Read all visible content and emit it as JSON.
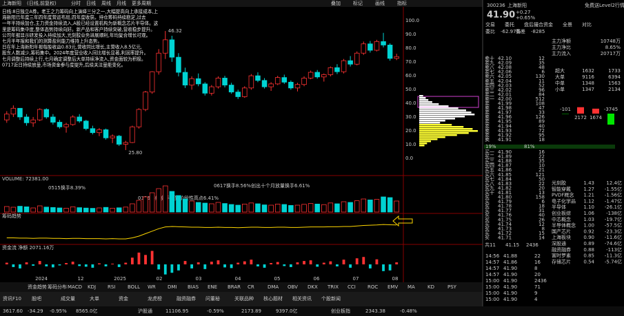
{
  "header": {
    "tabs": [
      "上海新阳",
      "(日线,前复权)",
      "分时",
      "日线",
      "周线",
      "月线",
      "更多周期"
    ],
    "tools": [
      "叠加",
      "标记",
      "画线",
      "指标"
    ]
  },
  "overlay_text": [
    "日线:8日独立A券。老王之力筹码向上演绎三分之一,大幅提高向上承接成本,上",
    "海新阳已年度三年四年度营运布局,四年度收获。持仓筹码持续稳定,过去",
    "一年半持续加仓,主力资金持续流入,A股已经设置机构为新概念芯片半导体。这",
    "里是筹码集中度,整体态势持续向好。新产品和客户持续突破,营收稳步提升。",
    "公司年报显示研发投入持续加大,光刻胶业务进展顺利,年均复合增长可观。",
    "七月半年报和我们的测算盈利能力维持上升态势。",
    "日在年上海新阳年报每股收益0.83元,营收同比增长,主营收入8.5亿元,",
    "股东人数减少,筹码集中。2024年度营业收入同比增长显著,利润率提升。",
    "七月调整后持续上行,七月确定调整后大单持续净流入,资金面较为积极。",
    "0717近日持续放量,市场资金参与度提升,后续关注量能变化。"
  ],
  "chart_data": {
    "type": "candlestick",
    "candles": [
      [
        31,
        32.5,
        30.5,
        32
      ],
      [
        32,
        33.5,
        31.5,
        33
      ],
      [
        33,
        33,
        31,
        31.5
      ],
      [
        31.5,
        32,
        30,
        30.5
      ],
      [
        30.5,
        31.5,
        29.8,
        31
      ],
      [
        31,
        33,
        30.8,
        32.8
      ],
      [
        32.8,
        33,
        31.2,
        31.5
      ],
      [
        31.5,
        32,
        30.2,
        30.6
      ],
      [
        30.6,
        31,
        29.5,
        29.8
      ],
      [
        29.8,
        30.5,
        28.8,
        30.2
      ],
      [
        30.2,
        31.8,
        30,
        31.5
      ],
      [
        31.5,
        32,
        30.5,
        30.8
      ],
      [
        30.8,
        31,
        29.2,
        29.5
      ],
      [
        29.5,
        30,
        28.5,
        28.8
      ],
      [
        28.8,
        29.6,
        28.2,
        29.3
      ],
      [
        29.3,
        29.5,
        27.6,
        27.9
      ],
      [
        27.9,
        28.5,
        27,
        28.2
      ],
      [
        28.2,
        28.4,
        26.5,
        26.8
      ],
      [
        26.8,
        27.4,
        25.8,
        27.1
      ],
      [
        27.1,
        30,
        27,
        29.8
      ],
      [
        29.8,
        33,
        29.5,
        32.8
      ],
      [
        32.8,
        36,
        32.5,
        35.8
      ],
      [
        35.8,
        39.4,
        35.5,
        39.3
      ],
      [
        39.3,
        43.2,
        38.8,
        42.5
      ],
      [
        42.5,
        46.32,
        41.5,
        44.8
      ],
      [
        44.8,
        45.5,
        41,
        41.8
      ],
      [
        41.8,
        42.5,
        38.5,
        39.2
      ],
      [
        39.2,
        40,
        36.5,
        37
      ],
      [
        37,
        38.5,
        36.2,
        38.1
      ],
      [
        38.1,
        39,
        36.8,
        37.2
      ],
      [
        37.2,
        37.5,
        35.2,
        35.6
      ],
      [
        35.6,
        37,
        35.2,
        36.7
      ],
      [
        36.7,
        38.5,
        36.4,
        38.2
      ],
      [
        38.2,
        38.6,
        36.6,
        37
      ],
      [
        37,
        37.4,
        35.5,
        35.8
      ],
      [
        35.8,
        36.2,
        34.6,
        35
      ],
      [
        35,
        36.8,
        34.8,
        36.5
      ],
      [
        36.5,
        38.9,
        36.2,
        38.6
      ],
      [
        38.6,
        39.2,
        37.5,
        37.8
      ],
      [
        37.8,
        38.2,
        36.4,
        36.7
      ],
      [
        36.7,
        37.5,
        36,
        37.2
      ],
      [
        37.2,
        38.6,
        37,
        38.3
      ],
      [
        38.3,
        38.8,
        37.2,
        37.5
      ],
      [
        37.5,
        37.8,
        36.2,
        36.5
      ],
      [
        36.5,
        37.4,
        35.9,
        37.1
      ],
      [
        37.1,
        38.5,
        36.8,
        38.2
      ],
      [
        38.2,
        39.5,
        38,
        39.2
      ],
      [
        39.2,
        39.6,
        38.1,
        38.4
      ],
      [
        38.4,
        39,
        37.6,
        38.8
      ],
      [
        38.8,
        40.2,
        38.5,
        40
      ],
      [
        40,
        40.6,
        38.9,
        39.3
      ],
      [
        39.3,
        41.5,
        39,
        41.2
      ],
      [
        41.2,
        42,
        40.2,
        40.6
      ],
      [
        40.6,
        42.8,
        40.4,
        42.5
      ],
      [
        42.5,
        44.5,
        42.2,
        44.1
      ],
      [
        44.1,
        44.6,
        42.6,
        43
      ],
      [
        43,
        44.8,
        42.8,
        44.5
      ],
      [
        44.5,
        46,
        43.5,
        43.9
      ],
      [
        43.9,
        44.2,
        41.2,
        41.6
      ],
      [
        41.6,
        42.4,
        41.3,
        41.9
      ]
    ],
    "ylim": [
      22,
      50
    ],
    "up_color": "#ff3232",
    "down_color": "#00d3d3",
    "right_axis": [
      "100.0",
      "90.0",
      "80.0",
      "70.0",
      "60.0",
      "50.0",
      "40.0",
      "30.0",
      "20.0",
      "10.0",
      "0.0"
    ],
    "annotations": [
      "46.32",
      "25.80"
    ],
    "x_labels": [
      "2024",
      "12",
      "2025",
      "02",
      "03",
      "04",
      "05",
      "06",
      "07",
      "08"
    ],
    "chips": {
      "values": [
        6,
        10,
        14,
        20,
        30,
        45,
        60,
        72,
        80,
        85,
        70,
        55,
        40,
        32,
        50,
        68,
        82,
        90,
        76,
        58,
        40,
        28,
        18,
        12,
        8
      ],
      "color": "#ffff33"
    },
    "volume": {
      "title": "VOLUME: 72381.00",
      "values": [
        40,
        35,
        42,
        38,
        30,
        45,
        36,
        33,
        30,
        28,
        38,
        32,
        29,
        27,
        30,
        34,
        28,
        31,
        36,
        60,
        85,
        110,
        140,
        170,
        190,
        150,
        120,
        95,
        80,
        70,
        65,
        60,
        70,
        62,
        55,
        50,
        58,
        66,
        60,
        52,
        50,
        58,
        55,
        48,
        50,
        56,
        62,
        58,
        54,
        66,
        60,
        75,
        70,
        82,
        95,
        88,
        92,
        110,
        105,
        80
      ],
      "ylim": [
        0,
        200
      ],
      "notes": [
        "0515换手8.39%",
        "0617换手8.56%创出十个月放量换手6.61%",
        "0326评级换手率到阶段性高点6.41%"
      ]
    },
    "indicator": {
      "title": "筹码趋势",
      "values": [
        18,
        18,
        17,
        17,
        16,
        17,
        17,
        16,
        16,
        15,
        16,
        16,
        15,
        15,
        15,
        14,
        15,
        14,
        14,
        18,
        25,
        35,
        45,
        55,
        62,
        64,
        63,
        62,
        61,
        61,
        60,
        60,
        61,
        60,
        60,
        59,
        60,
        61,
        61,
        60,
        60,
        61,
        61,
        60,
        60,
        61,
        62,
        62,
        62,
        63,
        63,
        64,
        64,
        66,
        68,
        69,
        70,
        72,
        71,
        70
      ],
      "ylim": [
        0,
        100
      ],
      "color": "#ffd700"
    },
    "flow": {
      "title": "资金流 净额 2071.16万",
      "values": [
        5,
        -8,
        -12,
        6,
        -4,
        10,
        -6,
        -9,
        -3,
        4,
        8,
        -5,
        -7,
        -10,
        3,
        -6,
        2,
        -8,
        5,
        20,
        35,
        28,
        40,
        -15,
        -30,
        -25,
        -18,
        10,
        -12,
        6,
        -14,
        8,
        12,
        -9,
        -11,
        5,
        9,
        14,
        -6,
        -10,
        4,
        7,
        -5,
        -8,
        6,
        10,
        12,
        -7,
        5,
        9,
        -6,
        14,
        -10,
        18,
        22,
        -12,
        15,
        -20,
        -18,
        6
      ],
      "ylim": [
        -45,
        45
      ]
    }
  },
  "indicator_tabs": [
    "资金趋势",
    "筹码分布",
    "MACD",
    "KDJ",
    "RSI",
    "BOLL",
    "WR",
    "DMI",
    "BIAS",
    "ENE",
    "BRAR",
    "CR",
    "DMA",
    "OBV",
    "DKX",
    "TRIX",
    "CCI",
    "ROC",
    "EMV",
    "MA",
    "KD",
    "PSY"
  ],
  "bottom_tabs": [
    "资讯F10",
    "股吧",
    "成交量",
    "大单",
    "资金",
    "龙虎榜",
    "融资融券",
    "问董秘",
    "关联品种",
    "核心题材",
    "相关资讯",
    "个股新闻"
  ],
  "quote": {
    "code": "300236",
    "name": "上海新阳",
    "price": "41.90",
    "change": "+0.27",
    "pct": "+0.65%",
    "tag": "免费送Level2行情"
  },
  "book_tabs": [
    "交易",
    "委托",
    "盘后撮合",
    "资金",
    "全景",
    "对比"
  ],
  "book_head": [
    "委比",
    "-62.97%",
    "委差",
    "-8285"
  ],
  "order_book": {
    "sells": [
      [
        "卖十",
        "42.10",
        "12"
      ],
      [
        "卖九",
        "42.09",
        "35"
      ],
      [
        "卖八",
        "42.08",
        "48"
      ],
      [
        "卖七",
        "42.06",
        "6"
      ],
      [
        "卖六",
        "42.05",
        "130"
      ],
      [
        "卖五",
        "42.04",
        "11"
      ],
      [
        "卖四",
        "42.03",
        "52"
      ],
      [
        "卖三",
        "42.02",
        "96"
      ],
      [
        "卖二",
        "42.01",
        "84"
      ],
      [
        "卖一",
        "42.00",
        "512"
      ],
      [
        "卖",
        "41.99",
        "108"
      ],
      [
        "卖",
        "41.98",
        "47"
      ],
      [
        "卖",
        "41.97",
        "33"
      ],
      [
        "卖",
        "41.96",
        "126"
      ],
      [
        "卖",
        "41.95",
        "89"
      ],
      [
        "卖",
        "41.94",
        "40"
      ],
      [
        "卖",
        "41.93",
        "72"
      ],
      [
        "卖",
        "41.92",
        "95"
      ],
      [
        "卖",
        "41.91",
        "18"
      ]
    ],
    "ratio": [
      "19%",
      "81%"
    ],
    "buys": [
      [
        "买一",
        "41.90",
        "16"
      ],
      [
        "买二",
        "41.89",
        "22"
      ],
      [
        "买三",
        "41.88",
        "35"
      ],
      [
        "买四",
        "41.87",
        "10"
      ],
      [
        "买五",
        "41.86",
        "21"
      ],
      [
        "买六",
        "41.85",
        "121"
      ],
      [
        "买七",
        "41.84",
        "50"
      ],
      [
        "买八",
        "41.83",
        "22"
      ],
      [
        "买九",
        "41.82",
        "20"
      ],
      [
        "买十",
        "41.81",
        "13"
      ],
      [
        "买",
        "41.80",
        "158"
      ],
      [
        "买",
        "41.79",
        "6"
      ],
      [
        "买",
        "41.78",
        "18"
      ],
      [
        "买",
        "41.77",
        "31"
      ],
      [
        "买",
        "41.76",
        "40"
      ],
      [
        "买",
        "41.75",
        "26"
      ],
      [
        "买",
        "41.74",
        "12"
      ],
      [
        "买",
        "41.73",
        "8"
      ],
      [
        "买",
        "41.72",
        "15"
      ],
      [
        "买",
        "41.71",
        "14"
      ]
    ],
    "total": [
      "共11",
      "41.15",
      "2436"
    ]
  },
  "fund_stats": [
    [
      "主力净额",
      "10748万"
    ],
    [
      "主力净比",
      "8.65%"
    ],
    [
      "主力流入",
      "20717万"
    ]
  ],
  "fund_table": [
    [
      "超大",
      "1632",
      "1733"
    ],
    [
      "大单",
      "9116",
      "6394"
    ],
    [
      "中单",
      "1348",
      "1563"
    ],
    [
      "小单",
      "1347",
      "2134"
    ]
  ],
  "fund_bars": {
    "values": [
      -101,
      2172,
      1674,
      -3745
    ],
    "labels": [
      "-101",
      "2172",
      "1674",
      "-3745"
    ]
  },
  "sectors": [
    [
      "光刻胶",
      "1.43",
      "12.4亿"
    ],
    [
      "智能穿戴",
      "1.27",
      "-1.55亿"
    ],
    [
      "PVDF概念",
      "1.21",
      "-1.56亿"
    ],
    [
      "电子化学品",
      "1.12",
      "-1.47亿"
    ],
    [
      "半导体",
      "1.10",
      "-26.1亿"
    ],
    [
      "创业板综",
      "1.06",
      "-138亿"
    ],
    [
      "中芯概念",
      "1.03",
      "-19.7亿"
    ],
    [
      "半导体概念",
      "1.00",
      "-57.5亿"
    ],
    [
      "国产芯片",
      "0.92",
      "-23.3亿"
    ],
    [
      "上海板块",
      "0.90",
      "-11.6亿"
    ],
    [
      "深股通",
      "0.89",
      "-74.6亿"
    ],
    [
      "融资融券",
      "0.88",
      "-113亿"
    ],
    [
      "富时罗素",
      "0.85",
      "-11.3亿"
    ],
    [
      "存储芯片",
      "0.54",
      "-5.74亿"
    ]
  ],
  "ticks": [
    [
      "14:56",
      "41.88",
      "22"
    ],
    [
      "14:57",
      "41.86",
      "16"
    ],
    [
      "14:57",
      "41.90",
      "8"
    ],
    [
      "14:57",
      "41.90",
      "20"
    ],
    [
      "15:00",
      "41.90",
      "2436"
    ],
    [
      "15:00",
      "41.90",
      "71"
    ],
    [
      "15:00",
      "41.90",
      "9"
    ],
    [
      "15:00",
      "41.90",
      "4"
    ]
  ],
  "status": [
    "3617.60",
    "-34.29",
    "-0.95%",
    "8565.0亿",
    "沪股通",
    "11106.95",
    "-0.59%",
    "2173.89",
    "9397.0亿",
    "创业板指",
    "2343.38",
    "-0.48%"
  ]
}
